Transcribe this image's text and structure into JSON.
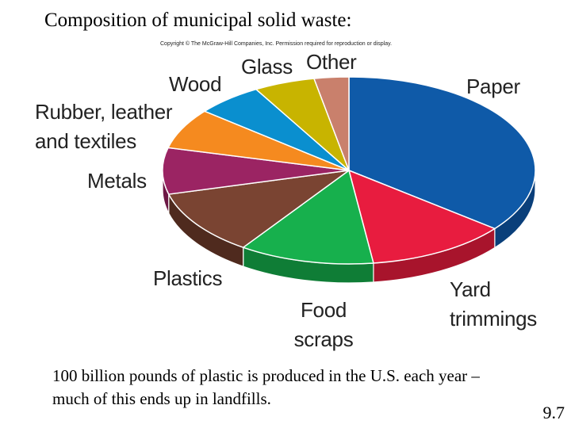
{
  "slide": {
    "title": "Composition of municipal solid waste:",
    "copyright": "Copyright © The McGraw-Hill Companies, Inc. Permission required for reproduction or display.",
    "caption": "100 billion pounds of plastic is produced in the U.S. each year – much of this ends up in landfills.",
    "page_number": "9.7"
  },
  "chart_data": {
    "type": "pie",
    "title": "",
    "slices": [
      {
        "label_lines": [
          "Paper"
        ],
        "value": 35.7,
        "color": "#0f5aa8",
        "side_color": "#0a3f7a"
      },
      {
        "label_lines": [
          "Yard",
          "trimmings"
        ],
        "value": 12.2,
        "color": "#e81c3f",
        "side_color": "#a8142c"
      },
      {
        "label_lines": [
          "Food",
          "scraps"
        ],
        "value": 11.7,
        "color": "#17b04d",
        "side_color": "#0f7d36"
      },
      {
        "label_lines": [
          "Plastics"
        ],
        "value": 11.3,
        "color": "#7a4432",
        "side_color": "#4f2a1e"
      },
      {
        "label_lines": [
          "Metals"
        ],
        "value": 8.0,
        "color": "#9b2463",
        "side_color": "#6d1845"
      },
      {
        "label_lines": [
          "Rubber, leather",
          "and textiles"
        ],
        "value": 7.0,
        "color": "#f58a1f",
        "side_color": "#b86514"
      },
      {
        "label_lines": [
          "Wood"
        ],
        "value": 5.8,
        "color": "#0a8fcf",
        "side_color": "#066793"
      },
      {
        "label_lines": [
          "Glass"
        ],
        "value": 5.3,
        "color": "#c8b400",
        "side_color": "#8f8100"
      },
      {
        "label_lines": [
          "Other"
        ],
        "value": 3.0,
        "color": "#c9806c",
        "side_color": "#94584a"
      }
    ]
  }
}
